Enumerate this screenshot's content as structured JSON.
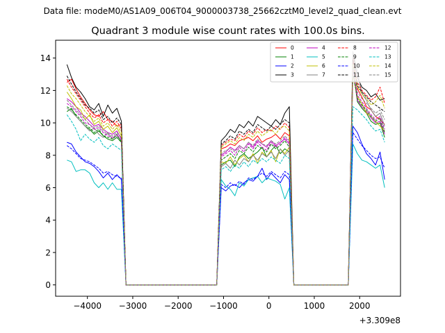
{
  "chart_data": {
    "type": "line",
    "suptitle": "Data file: modeM0/AS1A09_006T04_9000003738_25662cztM0_level2_quad_clean.evt",
    "title": "Quadrant 3 module wise count rates with 100.0s bins.",
    "xlabel": "",
    "ylabel": "",
    "x_offset_label": "+3.309e8",
    "xlim": [
      -4700,
      2900
    ],
    "ylim": [
      -0.7,
      15.1
    ],
    "x_ticks": [
      -4000,
      -3000,
      -2000,
      -1000,
      0,
      1000,
      2000
    ],
    "x_tick_labels": [
      "−4000",
      "−3000",
      "−2000",
      "−1000",
      "0",
      "1000",
      "2000"
    ],
    "y_ticks": [
      0,
      2,
      4,
      6,
      8,
      10,
      12,
      14
    ],
    "y_tick_labels": [
      "0",
      "2",
      "4",
      "6",
      "8",
      "10",
      "12",
      "14"
    ],
    "legend_position": "upper right",
    "legend_columns": 4,
    "segments": [
      {
        "x_start": -4450,
        "x_end": -3250,
        "step": 100
      },
      {
        "x_start": -1050,
        "x_end": 450,
        "step": 100
      },
      {
        "x_start": 1850,
        "x_end": 2550,
        "step": 100
      }
    ],
    "gaps": [
      {
        "x": [
          -3150,
          -3050,
          -2950,
          -2850,
          -2750,
          -2650,
          -2550,
          -2450,
          -2350,
          -2250,
          -2150,
          -2050,
          -1950,
          -1850,
          -1750,
          -1650,
          -1550,
          -1450,
          -1350,
          -1250,
          -1150
        ]
      },
      {
        "x": [
          550,
          650,
          750,
          850,
          950,
          1050,
          1150,
          1250,
          1350,
          1450,
          1550,
          1650,
          1750
        ]
      }
    ],
    "series": [
      {
        "name": "0",
        "color": "#ff0000",
        "dash": "solid",
        "v1": [
          12.5,
          12.7,
          12.1,
          11.6,
          11.2,
          10.8,
          10.5,
          10.4,
          10.7,
          10.2,
          10.1,
          9.8,
          9.9
        ],
        "v2": [
          8.4,
          8.5,
          8.7,
          8.6,
          8.9,
          9.0,
          9.1,
          8.9,
          9.2,
          8.8,
          9.0,
          9.1,
          9.3,
          9.0,
          9.4,
          9.2
        ],
        "v3": [
          14.1,
          12.1,
          11.6,
          11.0,
          10.8,
          10.4,
          10.2,
          9.9
        ]
      },
      {
        "name": "1",
        "color": "#008000",
        "dash": "solid",
        "v1": [
          10.7,
          10.9,
          10.4,
          10.1,
          9.8,
          9.6,
          9.3,
          9.5,
          9.2,
          9.0,
          8.9,
          9.1,
          8.8
        ],
        "v2": [
          7.4,
          7.6,
          7.7,
          7.3,
          7.9,
          8.1,
          7.8,
          8.0,
          8.2,
          8.5,
          7.9,
          8.3,
          8.6,
          8.1,
          8.4,
          8.2
        ],
        "v3": [
          13.4,
          11.3,
          10.9,
          10.6,
          10.1,
          9.9,
          10.0,
          9.1
        ]
      },
      {
        "name": "2",
        "color": "#0000ff",
        "dash": "solid",
        "v1": [
          8.8,
          8.7,
          8.2,
          7.9,
          7.6,
          7.5,
          7.3,
          7.0,
          6.6,
          6.9,
          6.5,
          6.8,
          6.5
        ],
        "v2": [
          6.0,
          5.8,
          6.1,
          6.2,
          6.0,
          6.3,
          6.5,
          6.4,
          6.7,
          7.2,
          6.5,
          6.9,
          6.6,
          6.3,
          6.8,
          6.5
        ],
        "v3": [
          9.8,
          9.4,
          8.7,
          8.1,
          7.8,
          7.4,
          8.2,
          6.5
        ]
      },
      {
        "name": "3",
        "color": "#000000",
        "dash": "solid",
        "v1": [
          13.6,
          12.8,
          12.2,
          11.9,
          11.5,
          11.0,
          10.8,
          11.2,
          10.4,
          11.1,
          10.6,
          10.9,
          10.1
        ],
        "v2": [
          8.9,
          9.2,
          9.6,
          9.4,
          9.9,
          9.7,
          10.1,
          9.8,
          10.4,
          10.2,
          10.0,
          9.8,
          10.2,
          9.9,
          10.6,
          11.0
        ],
        "v3": [
          14.3,
          12.8,
          12.2,
          12.0,
          11.6,
          11.8,
          11.4,
          11.5
        ]
      },
      {
        "name": "4",
        "color": "#bf00bf",
        "dash": "solid",
        "v1": [
          11.5,
          11.3,
          11.0,
          10.6,
          10.4,
          10.1,
          9.8,
          9.9,
          9.6,
          9.4,
          9.3,
          9.5,
          9.0
        ],
        "v2": [
          8.0,
          8.2,
          8.5,
          8.3,
          8.6,
          8.4,
          8.8,
          8.5,
          8.9,
          8.7,
          8.5,
          8.9,
          8.6,
          8.8,
          9.0,
          8.7
        ],
        "v3": [
          13.2,
          11.4,
          11.0,
          10.7,
          10.3,
          10.0,
          10.1,
          9.3
        ]
      },
      {
        "name": "5",
        "color": "#00bfbf",
        "dash": "solid",
        "v1": [
          7.7,
          7.6,
          7.0,
          7.1,
          7.1,
          6.9,
          6.3,
          6.0,
          6.3,
          5.9,
          6.3,
          5.9,
          5.9
        ],
        "v2": [
          6.5,
          6.1,
          5.9,
          5.5,
          6.3,
          6.1,
          6.5,
          6.6,
          6.7,
          6.3,
          6.6,
          6.5,
          6.4,
          6.2,
          5.3,
          6.0
        ],
        "v3": [
          8.7,
          8.1,
          7.7,
          7.6,
          7.4,
          7.2,
          7.4,
          6.0
        ]
      },
      {
        "name": "6",
        "color": "#bfbf00",
        "dash": "solid",
        "v1": [
          11.9,
          11.5,
          11.0,
          10.8,
          10.2,
          10.5,
          9.9,
          10.1,
          9.6,
          9.8,
          9.4,
          9.7,
          9.2
        ],
        "v2": [
          7.6,
          7.5,
          7.9,
          7.4,
          7.8,
          8.0,
          7.6,
          8.1,
          7.5,
          8.2,
          7.9,
          8.3,
          7.6,
          8.4,
          8.1,
          8.5
        ],
        "v3": [
          13.0,
          11.6,
          11.2,
          10.6,
          10.4,
          10.1,
          9.8,
          9.5
        ]
      },
      {
        "name": "7",
        "color": "#808080",
        "dash": "solid",
        "v1": [
          10.9,
          10.7,
          10.4,
          10.1,
          9.8,
          9.5,
          9.7,
          9.3,
          9.1,
          9.4,
          9.0,
          9.2,
          8.9
        ],
        "v2": [
          7.3,
          7.5,
          7.2,
          7.7,
          7.4,
          7.8,
          7.6,
          8.0,
          7.7,
          8.1,
          7.9,
          8.2,
          7.8,
          8.4,
          8.0,
          8.3
        ],
        "v3": [
          14.4,
          13.2,
          11.8,
          11.4,
          10.8,
          10.4,
          10.6,
          9.8
        ]
      },
      {
        "name": "8",
        "color": "#ff0000",
        "dash": "dashed",
        "v1": [
          12.7,
          12.2,
          11.8,
          11.4,
          11.0,
          10.6,
          10.3,
          10.5,
          10.0,
          10.2,
          9.8,
          10.1,
          9.6
        ],
        "v2": [
          8.6,
          8.8,
          9.0,
          8.9,
          9.3,
          9.1,
          9.5,
          9.3,
          9.7,
          9.4,
          9.6,
          9.5,
          9.8,
          9.6,
          10.0,
          9.7
        ],
        "v3": [
          13.8,
          12.5,
          12.0,
          11.7,
          11.4,
          11.6,
          12.2,
          11.2
        ]
      },
      {
        "name": "9",
        "color": "#008000",
        "dash": "dashed",
        "v1": [
          11.0,
          10.8,
          10.5,
          10.2,
          9.9,
          9.7,
          9.4,
          9.6,
          9.2,
          9.1,
          9.0,
          9.3,
          8.8
        ],
        "v2": [
          7.7,
          7.9,
          8.1,
          7.8,
          8.3,
          8.1,
          8.5,
          8.2,
          8.6,
          8.4,
          8.2,
          8.7,
          8.4,
          8.6,
          8.9,
          8.5
        ],
        "v3": [
          13.1,
          11.5,
          11.1,
          10.8,
          10.4,
          10.1,
          10.3,
          9.4
        ]
      },
      {
        "name": "10",
        "color": "#0000ff",
        "dash": "dashed",
        "v1": [
          8.6,
          8.4,
          8.1,
          7.8,
          7.7,
          7.6,
          7.4,
          7.2,
          6.9,
          7.0,
          6.8,
          6.7,
          6.6
        ],
        "v2": [
          6.2,
          6.0,
          6.3,
          6.1,
          6.4,
          6.2,
          6.6,
          6.5,
          6.7,
          6.9,
          6.7,
          7.0,
          6.8,
          6.6,
          7.0,
          6.8
        ],
        "v3": [
          9.4,
          9.0,
          8.6,
          8.3,
          8.0,
          7.8,
          7.9,
          7.2
        ]
      },
      {
        "name": "11",
        "color": "#000000",
        "dash": "dashed",
        "v1": [
          12.9,
          12.4,
          11.9,
          11.5,
          11.1,
          10.9,
          10.6,
          10.8,
          10.2,
          10.4,
          10.0,
          10.3,
          9.9
        ],
        "v2": [
          8.7,
          8.9,
          9.2,
          9.0,
          9.5,
          9.3,
          9.6,
          9.4,
          9.9,
          9.7,
          9.5,
          9.8,
          9.6,
          9.9,
          10.2,
          10.0
        ],
        "v3": [
          13.9,
          12.3,
          11.9,
          11.6,
          11.3,
          11.1,
          10.9,
          10.7
        ]
      },
      {
        "name": "12",
        "color": "#bf00bf",
        "dash": "dashed",
        "v1": [
          11.2,
          11.0,
          10.7,
          10.4,
          10.0,
          9.9,
          9.6,
          9.7,
          9.4,
          9.2,
          9.1,
          9.3,
          8.9
        ],
        "v2": [
          7.9,
          8.1,
          8.3,
          8.0,
          8.5,
          8.2,
          8.7,
          8.4,
          8.8,
          8.5,
          8.3,
          8.8,
          8.5,
          8.7,
          9.1,
          8.8
        ],
        "v3": [
          13.3,
          11.7,
          11.3,
          10.9,
          10.5,
          10.2,
          10.4,
          9.6
        ]
      },
      {
        "name": "13",
        "color": "#00bfbf",
        "dash": "dashed",
        "v1": [
          10.5,
          10.1,
          9.6,
          8.9,
          9.3,
          9.0,
          8.8,
          9.1,
          8.6,
          8.4,
          8.7,
          8.5,
          8.3
        ],
        "v2": [
          7.1,
          7.3,
          7.0,
          7.4,
          7.2,
          7.6,
          7.3,
          7.7,
          7.5,
          7.8,
          7.6,
          7.9,
          7.7,
          7.5,
          8.0,
          7.8
        ],
        "v3": [
          11.0,
          10.8,
          10.5,
          10.2,
          9.8,
          9.5,
          9.6,
          8.8
        ]
      },
      {
        "name": "14",
        "color": "#bfbf00",
        "dash": "dashed",
        "v1": [
          12.3,
          11.8,
          11.5,
          11.1,
          10.7,
          10.4,
          10.1,
          10.3,
          9.8,
          10.0,
          9.6,
          9.9,
          9.4
        ],
        "v2": [
          8.5,
          8.7,
          8.9,
          8.7,
          9.1,
          8.9,
          9.3,
          9.1,
          9.5,
          9.2,
          9.4,
          9.6,
          9.3,
          9.7,
          9.8,
          9.5
        ],
        "v3": [
          13.6,
          12.2,
          11.8,
          11.5,
          11.1,
          11.3,
          11.7,
          10.9
        ]
      },
      {
        "name": "15",
        "color": "#808080",
        "dash": "dashed",
        "v1": [
          11.4,
          11.1,
          10.8,
          10.5,
          10.2,
          9.9,
          9.7,
          9.8,
          9.5,
          9.3,
          9.2,
          9.4,
          9.1
        ],
        "v2": [
          8.1,
          8.3,
          8.4,
          8.2,
          8.6,
          8.4,
          8.8,
          8.6,
          9.0,
          8.7,
          8.6,
          8.9,
          8.7,
          8.9,
          9.2,
          8.9
        ],
        "v3": [
          13.5,
          11.9,
          11.5,
          11.2,
          10.9,
          10.6,
          10.8,
          10.2
        ]
      }
    ]
  }
}
